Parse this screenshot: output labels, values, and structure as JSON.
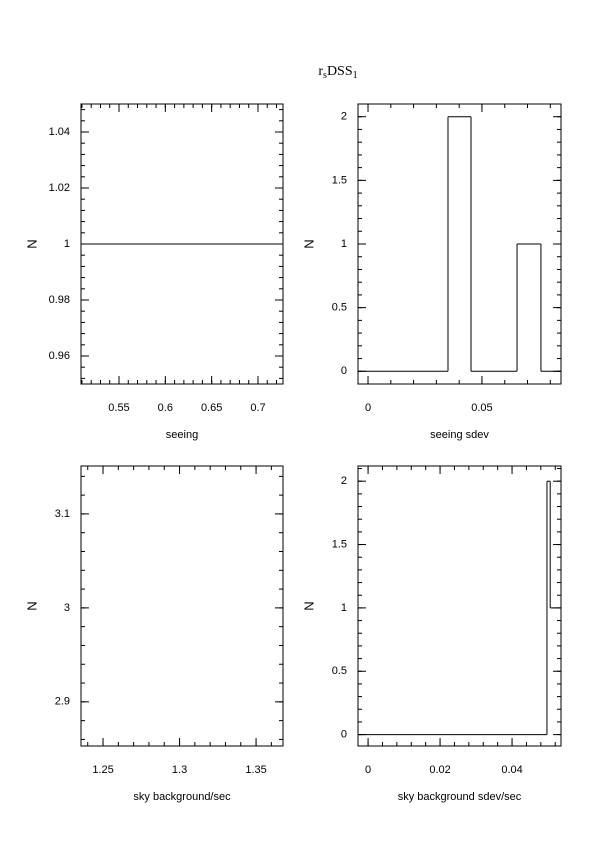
{
  "title": [
    "r",
    "s",
    "DSS",
    "1"
  ],
  "chart_data": [
    {
      "type": "histogram",
      "xlabel": "seeing",
      "ylabel": "N",
      "xlim": [
        0.509,
        0.727
      ],
      "xticks": [
        0.55,
        0.6,
        0.65,
        0.7
      ],
      "ylim": [
        0.95,
        1.05
      ],
      "yticks": [
        0.96,
        0.98,
        1,
        1.02,
        1.04
      ],
      "bins": [
        0.509,
        0.727
      ],
      "counts": [
        1
      ]
    },
    {
      "type": "histogram",
      "xlabel": "seeing sdev",
      "ylabel": "N",
      "xlim": [
        -0.0044,
        0.0847
      ],
      "xticks": [
        0,
        0.05
      ],
      "ylim": [
        -0.1,
        2.1
      ],
      "yticks": [
        0,
        0.5,
        1,
        1.5,
        2
      ],
      "bins": [
        -0.0044,
        0.0351,
        0.0452,
        0.0654,
        0.0759,
        0.0847
      ],
      "counts": [
        0,
        2,
        0,
        1,
        0
      ]
    },
    {
      "type": "histogram",
      "xlabel": "sky background/sec",
      "ylabel": "N",
      "xlim": [
        1.2356,
        1.3676
      ],
      "xticks": [
        1.25,
        1.3,
        1.35
      ],
      "ylim": [
        2.853,
        3.151
      ],
      "yticks": [
        2.9,
        3,
        3.1
      ]
    },
    {
      "type": "histogram",
      "xlabel": "sky background sdev/sec",
      "ylabel": "N",
      "xlim": [
        -0.0028,
        0.0536
      ],
      "xticks": [
        0,
        0.02,
        0.04
      ],
      "ylim": [
        -0.09,
        2.12
      ],
      "yticks": [
        0,
        0.5,
        1,
        1.5,
        2
      ],
      "bins": [
        -0.0028,
        0.0497,
        0.0506,
        0.0536
      ],
      "counts": [
        0,
        2,
        1
      ]
    }
  ]
}
